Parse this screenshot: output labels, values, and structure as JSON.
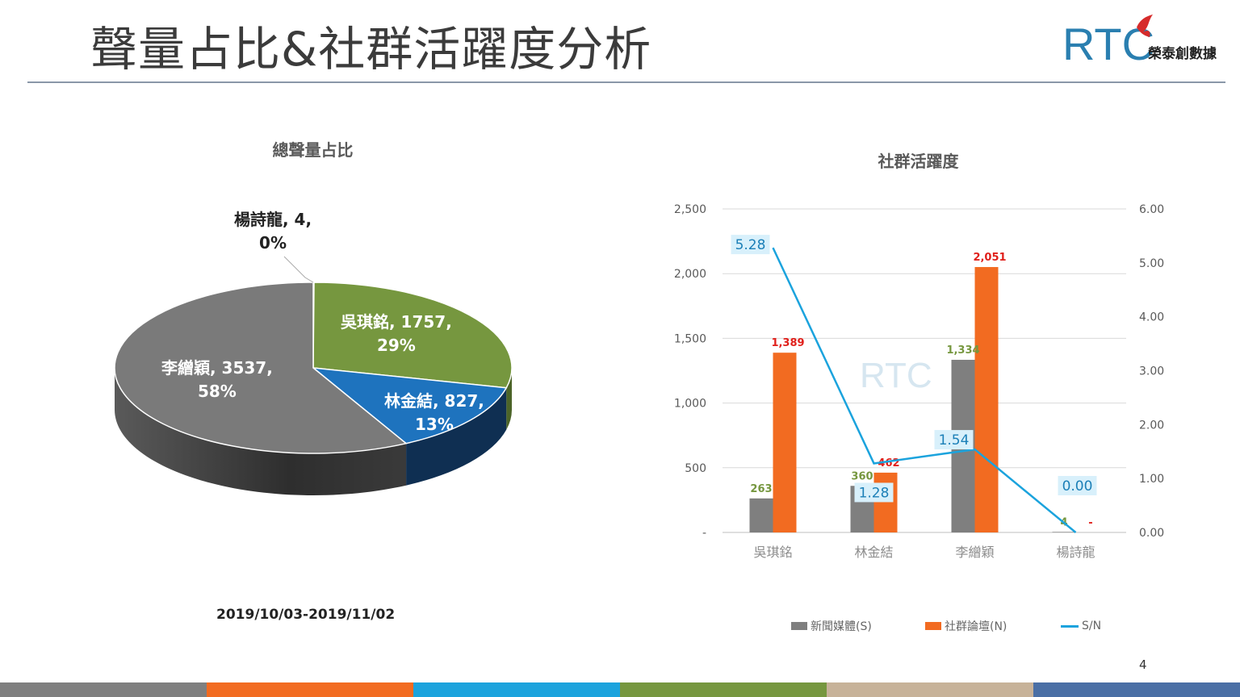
{
  "slide": {
    "title": "聲量占比&社群活躍度分析",
    "page_number": "4",
    "date_range": "2019/10/03-2019/11/02",
    "footer_colors": [
      "#7f7f7f",
      "#f26b21",
      "#1ba3dd",
      "#76973f",
      "#c7b299",
      "#4a6fa5"
    ]
  },
  "logo": {
    "mark": "RTC",
    "text": "榮泰創數據",
    "icon": "rtc-flame-logo-icon",
    "colors": {
      "mark": "#2a7fb0",
      "accent": "#d62b2b"
    }
  },
  "pie_chart": {
    "title": "總聲量占比",
    "labels": [
      {
        "line1": "李繒穎, 3537,",
        "line2": "58%"
      },
      {
        "line1": "吳琪銘, 1757,",
        "line2": "29%"
      },
      {
        "line1": "林金結, 827,",
        "line2": "13%"
      },
      {
        "line1": "楊詩龍, 4,",
        "line2": "0%"
      }
    ]
  },
  "bar_chart": {
    "title": "社群活躍度",
    "left_ticks": [
      "2,500",
      "2,000",
      "1,500",
      "1,000",
      "500",
      "-"
    ],
    "right_ticks": [
      "6.00",
      "5.00",
      "4.00",
      "3.00",
      "2.00",
      "1.00",
      "0.00"
    ],
    "bar_labels_s": [
      "263",
      "360",
      "1,334",
      "4"
    ],
    "bar_labels_n": [
      "1,389",
      "462",
      "2,051",
      "-"
    ],
    "line_labels": [
      "5.28",
      "1.28",
      "1.54",
      "0.00"
    ],
    "legend": [
      "新聞媒體(S)",
      "社群論壇(N)",
      "S/N"
    ]
  },
  "chart_data": [
    {
      "type": "pie",
      "title": "總聲量占比",
      "categories": [
        "李繒穎",
        "吳琪銘",
        "林金結",
        "楊詩龍"
      ],
      "values": [
        3537,
        1757,
        827,
        4
      ],
      "percent": [
        58,
        29,
        13,
        0
      ],
      "colors": [
        "#7a7a7a",
        "#76973f",
        "#1e73be",
        "#e0e0e0"
      ]
    },
    {
      "type": "bar",
      "title": "社群活躍度",
      "categories": [
        "吳琪銘",
        "林金結",
        "李繒穎",
        "楊詩龍"
      ],
      "series": [
        {
          "name": "新聞媒體(S)",
          "values": [
            263,
            360,
            1334,
            4
          ],
          "color": "#7f7f7f",
          "axis": "left"
        },
        {
          "name": "社群論壇(N)",
          "values": [
            1389,
            462,
            2051,
            0
          ],
          "color": "#f26b21",
          "axis": "left"
        },
        {
          "name": "S/N",
          "type": "line",
          "values": [
            5.28,
            1.28,
            1.54,
            0.0
          ],
          "color": "#1ba3dd",
          "axis": "right"
        }
      ],
      "ylim": [
        0,
        2500
      ],
      "y2lim": [
        0,
        6
      ],
      "grid": true,
      "legend_position": "bottom"
    }
  ]
}
